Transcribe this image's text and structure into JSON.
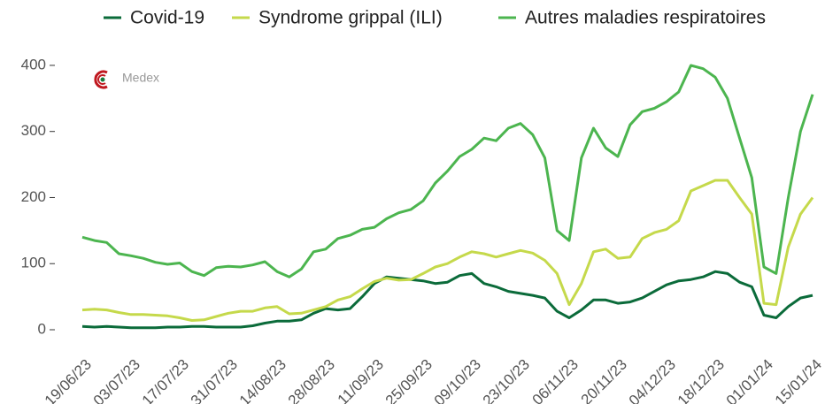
{
  "logo": "Medex",
  "chart_data": {
    "type": "line",
    "categories": [
      "19/06/23",
      null,
      null,
      null,
      "03/07/23",
      null,
      null,
      null,
      "17/07/23",
      null,
      null,
      null,
      "31/07/23",
      null,
      null,
      null,
      "14/08/23",
      null,
      null,
      null,
      "28/08/23",
      null,
      null,
      null,
      "11/09/23",
      null,
      null,
      null,
      "25/09/23",
      null,
      null,
      null,
      "09/10/23",
      null,
      null,
      null,
      "23/10/23",
      null,
      null,
      null,
      "06/11/23",
      null,
      null,
      null,
      "20/11/23",
      null,
      null,
      null,
      "04/12/23",
      null,
      null,
      null,
      "18/12/23",
      null,
      null,
      null,
      "01/01/24",
      null,
      null,
      null,
      "15/01/24"
    ],
    "series": [
      {
        "name": "Covid-19",
        "color": "#0b6b3a",
        "values": [
          5,
          4,
          5,
          4,
          3,
          3,
          3,
          4,
          4,
          5,
          5,
          4,
          4,
          4,
          6,
          10,
          13,
          13,
          15,
          25,
          32,
          30,
          32,
          50,
          70,
          80,
          78,
          76,
          74,
          70,
          72,
          82,
          85,
          70,
          65,
          58,
          55,
          52,
          48,
          28,
          18,
          30,
          45,
          45,
          40,
          42,
          48,
          58,
          68,
          74,
          76,
          80,
          88,
          85,
          72,
          65,
          22,
          18,
          35,
          48,
          52
        ]
      },
      {
        "name": "Syndrome grippal (ILI)",
        "color": "#c5d94b",
        "values": [
          30,
          31,
          30,
          26,
          23,
          23,
          22,
          21,
          18,
          14,
          15,
          20,
          25,
          28,
          28,
          33,
          35,
          24,
          25,
          30,
          35,
          45,
          50,
          62,
          73,
          78,
          75,
          76,
          85,
          95,
          100,
          110,
          118,
          115,
          110,
          115,
          120,
          116,
          105,
          85,
          38,
          70,
          118,
          122,
          108,
          110,
          138,
          147,
          152,
          165,
          210,
          218,
          226,
          226,
          200,
          175,
          40,
          38,
          125,
          175,
          200
        ]
      },
      {
        "name": "Autres maladies respiratoires",
        "color": "#4cb54f",
        "values": [
          140,
          135,
          132,
          115,
          112,
          108,
          102,
          99,
          101,
          88,
          82,
          94,
          96,
          95,
          98,
          103,
          88,
          80,
          92,
          118,
          122,
          138,
          143,
          152,
          155,
          168,
          177,
          182,
          195,
          222,
          240,
          262,
          273,
          290,
          286,
          305,
          312,
          295,
          260,
          150,
          135,
          260,
          305,
          275,
          262,
          310,
          330,
          335,
          345,
          360,
          400,
          395,
          382,
          350,
          290,
          230,
          95,
          85,
          200,
          300,
          356
        ]
      }
    ],
    "ylim": [
      -15,
      420
    ],
    "yticks": [
      0,
      100,
      200,
      300,
      400
    ],
    "grid": false,
    "legend": "top"
  }
}
